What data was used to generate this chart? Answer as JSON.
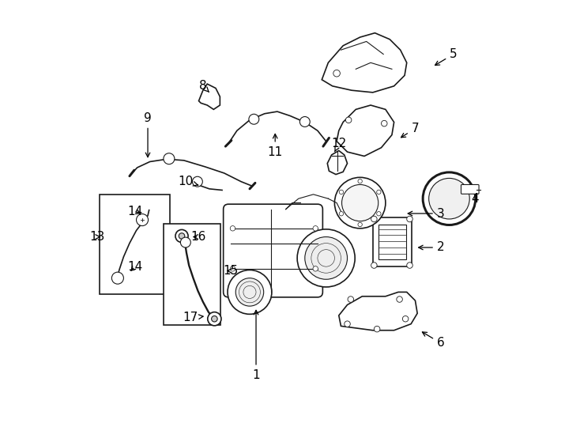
{
  "bg_color": "#ffffff",
  "line_color": "#1a1a1a",
  "labels_and_arrows": [
    [
      1,
      0.42,
      0.12,
      0.42,
      0.28
    ],
    [
      2,
      0.855,
      0.42,
      0.795,
      0.42
    ],
    [
      3,
      0.855,
      0.5,
      0.77,
      0.5
    ],
    [
      4,
      0.935,
      0.535,
      0.935,
      0.535
    ],
    [
      5,
      0.885,
      0.875,
      0.835,
      0.845
    ],
    [
      6,
      0.855,
      0.195,
      0.805,
      0.225
    ],
    [
      7,
      0.795,
      0.7,
      0.755,
      0.675
    ],
    [
      8,
      0.295,
      0.8,
      0.31,
      0.785
    ],
    [
      9,
      0.165,
      0.725,
      0.165,
      0.625
    ],
    [
      10,
      0.255,
      0.575,
      0.29,
      0.565
    ],
    [
      11,
      0.465,
      0.645,
      0.465,
      0.695
    ],
    [
      12,
      0.615,
      0.665,
      0.605,
      0.645
    ],
    [
      13,
      0.045,
      0.445,
      0.06,
      0.445
    ],
    [
      14,
      0.135,
      0.505,
      0.155,
      0.498
    ],
    [
      15,
      0.36,
      0.365,
      0.345,
      0.365
    ],
    [
      16,
      0.285,
      0.445,
      0.265,
      0.445
    ],
    [
      17,
      0.265,
      0.255,
      0.298,
      0.258
    ]
  ],
  "extra_labels": [
    [
      14,
      0.135,
      0.375,
      0.12,
      0.36
    ]
  ]
}
